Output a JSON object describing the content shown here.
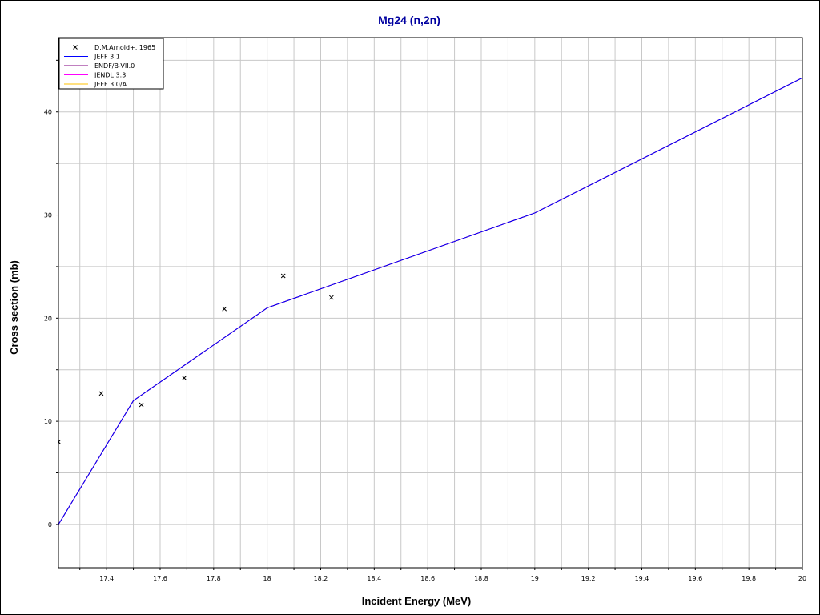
{
  "chart_data": {
    "type": "line",
    "title": "Mg24 (n,2n)",
    "xlabel": "Incident Energy (MeV)",
    "ylabel": "Cross section (mb)",
    "xlim": [
      17.22,
      20.0
    ],
    "ylim": [
      -4.2,
      47.2
    ],
    "grid": true,
    "legend_position": "top-left",
    "x_ticks": [
      {
        "value": 17.4,
        "label": "17,4"
      },
      {
        "value": 17.6,
        "label": "17,6"
      },
      {
        "value": 17.8,
        "label": "17,8"
      },
      {
        "value": 18.0,
        "label": "18"
      },
      {
        "value": 18.2,
        "label": "18,2"
      },
      {
        "value": 18.4,
        "label": "18,4"
      },
      {
        "value": 18.6,
        "label": "18,6"
      },
      {
        "value": 18.8,
        "label": "18,8"
      },
      {
        "value": 19.0,
        "label": "19"
      },
      {
        "value": 19.2,
        "label": "19,2"
      },
      {
        "value": 19.4,
        "label": "19,4"
      },
      {
        "value": 19.6,
        "label": "19,6"
      },
      {
        "value": 19.8,
        "label": "19,8"
      },
      {
        "value": 20.0,
        "label": "20"
      }
    ],
    "y_ticks": [
      {
        "value": 0,
        "label": "0"
      },
      {
        "value": 10,
        "label": "10"
      },
      {
        "value": 20,
        "label": "20"
      },
      {
        "value": 30,
        "label": "30"
      },
      {
        "value": 40,
        "label": "40"
      }
    ],
    "series": [
      {
        "name": "D.M.Arnold+, 1965",
        "kind": "scatter",
        "marker": "x",
        "color": "#000000",
        "points": [
          {
            "x": 17.22,
            "y": 8.0
          },
          {
            "x": 17.38,
            "y": 12.7
          },
          {
            "x": 17.53,
            "y": 11.6
          },
          {
            "x": 17.69,
            "y": 14.2
          },
          {
            "x": 17.84,
            "y": 20.9
          },
          {
            "x": 18.06,
            "y": 24.1
          },
          {
            "x": 18.24,
            "y": 22.0
          }
        ]
      },
      {
        "name": "JEFF 3.1",
        "kind": "line",
        "color": "#0000ff",
        "points": [
          {
            "x": 17.22,
            "y": 0.0
          },
          {
            "x": 17.5,
            "y": 12.0
          },
          {
            "x": 18.0,
            "y": 21.0
          },
          {
            "x": 19.0,
            "y": 30.2
          },
          {
            "x": 20.0,
            "y": 43.3
          }
        ]
      },
      {
        "name": "ENDF/B-VII.0",
        "kind": "line",
        "color": "#800080",
        "points": [
          {
            "x": 17.22,
            "y": 0.0
          },
          {
            "x": 17.5,
            "y": 12.0
          },
          {
            "x": 18.0,
            "y": 21.0
          },
          {
            "x": 19.0,
            "y": 30.2
          },
          {
            "x": 20.0,
            "y": 43.3
          }
        ]
      },
      {
        "name": "JENDL 3.3",
        "kind": "line",
        "color": "#ff00ff",
        "points": [
          {
            "x": 17.22,
            "y": 0.0
          },
          {
            "x": 17.5,
            "y": 12.0
          },
          {
            "x": 18.0,
            "y": 21.0
          },
          {
            "x": 19.0,
            "y": 30.2
          },
          {
            "x": 20.0,
            "y": 43.3
          }
        ]
      },
      {
        "name": "JEFF 3.0/A",
        "kind": "line",
        "color": "#ffc000",
        "points": [
          {
            "x": 17.22,
            "y": 0.0
          },
          {
            "x": 17.5,
            "y": 12.0
          },
          {
            "x": 18.0,
            "y": 21.0
          },
          {
            "x": 19.0,
            "y": 30.2
          },
          {
            "x": 20.0,
            "y": 43.3
          }
        ]
      }
    ]
  },
  "colors": {
    "title": "#0000a0",
    "grid": "#c8c8c8",
    "axis": "#000000"
  }
}
